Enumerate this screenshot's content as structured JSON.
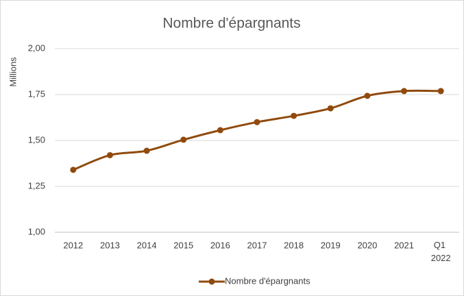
{
  "chart_data": {
    "type": "line",
    "title": "Nombre d'épargnants",
    "y_label": "Millions",
    "categories": [
      "2012",
      "2013",
      "2014",
      "2015",
      "2016",
      "2017",
      "2018",
      "2019",
      "2020",
      "2021",
      "Q1 2022"
    ],
    "series": [
      {
        "name": "Nombre d'épargnants",
        "color": "#8f4a0c",
        "values": [
          1.34,
          1.42,
          1.444,
          1.504,
          1.556,
          1.6,
          1.634,
          1.675,
          1.743,
          1.769,
          1.769
        ]
      }
    ],
    "ylim": [
      1.0,
      2.0
    ],
    "yticks": [
      {
        "value": 1.0,
        "label": "1,00"
      },
      {
        "value": 1.25,
        "label": "1,25"
      },
      {
        "value": 1.5,
        "label": "1,50"
      },
      {
        "value": 1.75,
        "label": "1,75"
      },
      {
        "value": 2.0,
        "label": "2,00"
      }
    ],
    "grid": true,
    "smooth": true,
    "legend": "bottom"
  }
}
